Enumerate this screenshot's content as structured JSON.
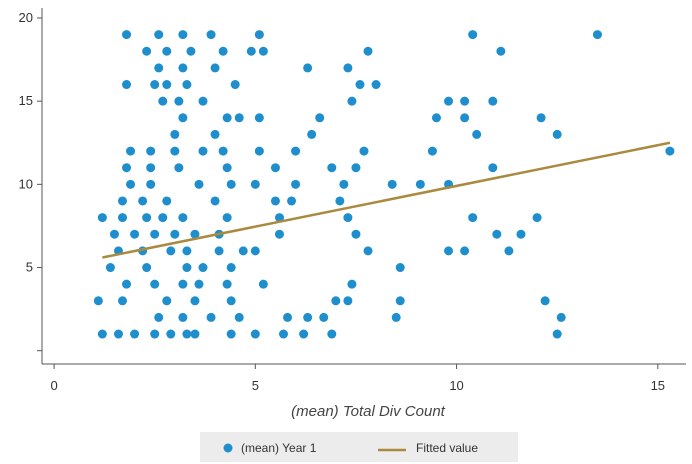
{
  "chart_data": {
    "type": "scatter",
    "xlabel": "(mean) Total Div Count",
    "ylabel": "",
    "xlim": [
      -0.3,
      15.7
    ],
    "ylim": [
      -0.8,
      20.6
    ],
    "xticks": [
      0,
      5,
      10,
      15
    ],
    "yticks": [
      5,
      10,
      15,
      20
    ],
    "y_minor_ticks": [
      0
    ],
    "grid": false,
    "legend": "bottom",
    "colors": {
      "points": "#1f8ecd",
      "fit": "#a98a3e",
      "axis": "#555555"
    },
    "series": [
      {
        "name": "(mean) Year 1",
        "kind": "scatter",
        "points": [
          [
            1.8,
            19
          ],
          [
            2.6,
            19
          ],
          [
            3.2,
            19
          ],
          [
            3.9,
            19
          ],
          [
            5.1,
            19
          ],
          [
            10.4,
            19
          ],
          [
            13.5,
            19
          ],
          [
            2.3,
            18
          ],
          [
            2.8,
            18
          ],
          [
            3.4,
            18
          ],
          [
            4.2,
            18
          ],
          [
            4.9,
            18
          ],
          [
            5.2,
            18
          ],
          [
            7.8,
            18
          ],
          [
            11.1,
            18
          ],
          [
            2.6,
            17
          ],
          [
            3.2,
            17
          ],
          [
            4.0,
            17
          ],
          [
            6.3,
            17
          ],
          [
            7.3,
            17
          ],
          [
            1.8,
            16
          ],
          [
            2.5,
            16
          ],
          [
            2.8,
            16
          ],
          [
            3.3,
            16
          ],
          [
            4.5,
            16
          ],
          [
            7.6,
            16
          ],
          [
            8.0,
            16
          ],
          [
            2.7,
            15
          ],
          [
            3.1,
            15
          ],
          [
            3.7,
            15
          ],
          [
            7.4,
            15
          ],
          [
            9.8,
            15
          ],
          [
            10.2,
            15
          ],
          [
            10.9,
            15
          ],
          [
            3.2,
            14
          ],
          [
            4.3,
            14
          ],
          [
            4.6,
            14
          ],
          [
            5.1,
            14
          ],
          [
            6.6,
            14
          ],
          [
            9.5,
            14
          ],
          [
            10.2,
            14
          ],
          [
            12.1,
            14
          ],
          [
            3.0,
            13
          ],
          [
            4.0,
            13
          ],
          [
            6.4,
            13
          ],
          [
            10.5,
            13
          ],
          [
            12.5,
            13
          ],
          [
            1.9,
            12
          ],
          [
            2.4,
            12
          ],
          [
            3.0,
            12
          ],
          [
            3.7,
            12
          ],
          [
            4.2,
            12
          ],
          [
            5.1,
            12
          ],
          [
            6.0,
            12
          ],
          [
            7.7,
            12
          ],
          [
            9.4,
            12
          ],
          [
            15.3,
            12
          ],
          [
            1.8,
            11
          ],
          [
            2.4,
            11
          ],
          [
            3.1,
            11
          ],
          [
            4.3,
            11
          ],
          [
            5.5,
            11
          ],
          [
            6.9,
            11
          ],
          [
            7.5,
            11
          ],
          [
            10.9,
            11
          ],
          [
            1.9,
            10
          ],
          [
            2.4,
            10
          ],
          [
            3.6,
            10
          ],
          [
            4.4,
            10
          ],
          [
            5.0,
            10
          ],
          [
            6.0,
            10
          ],
          [
            7.2,
            10
          ],
          [
            8.4,
            10
          ],
          [
            9.1,
            10
          ],
          [
            9.8,
            10
          ],
          [
            1.7,
            9
          ],
          [
            2.2,
            9
          ],
          [
            2.8,
            9
          ],
          [
            4.0,
            9
          ],
          [
            5.5,
            9
          ],
          [
            5.9,
            9
          ],
          [
            7.1,
            9
          ],
          [
            1.2,
            8
          ],
          [
            1.7,
            8
          ],
          [
            2.3,
            8
          ],
          [
            2.7,
            8
          ],
          [
            3.2,
            8
          ],
          [
            4.3,
            8
          ],
          [
            5.6,
            8
          ],
          [
            7.3,
            8
          ],
          [
            10.4,
            8
          ],
          [
            12.0,
            8
          ],
          [
            1.5,
            7
          ],
          [
            2.0,
            7
          ],
          [
            2.5,
            7
          ],
          [
            3.0,
            7
          ],
          [
            3.5,
            7
          ],
          [
            4.1,
            7
          ],
          [
            5.6,
            7
          ],
          [
            7.5,
            7
          ],
          [
            11.0,
            7
          ],
          [
            11.6,
            7
          ],
          [
            1.6,
            6
          ],
          [
            2.2,
            6
          ],
          [
            2.9,
            6
          ],
          [
            3.3,
            6
          ],
          [
            4.1,
            6
          ],
          [
            4.7,
            6
          ],
          [
            5.0,
            6
          ],
          [
            7.8,
            6
          ],
          [
            9.8,
            6
          ],
          [
            10.2,
            6
          ],
          [
            11.3,
            6
          ],
          [
            1.4,
            5
          ],
          [
            2.3,
            5
          ],
          [
            3.3,
            5
          ],
          [
            3.7,
            5
          ],
          [
            4.4,
            5
          ],
          [
            8.6,
            5
          ],
          [
            1.8,
            4
          ],
          [
            2.5,
            4
          ],
          [
            3.2,
            4
          ],
          [
            3.6,
            4
          ],
          [
            4.3,
            4
          ],
          [
            5.2,
            4
          ],
          [
            7.4,
            4
          ],
          [
            1.1,
            3
          ],
          [
            1.7,
            3
          ],
          [
            2.8,
            3
          ],
          [
            3.5,
            3
          ],
          [
            4.4,
            3
          ],
          [
            7.0,
            3
          ],
          [
            7.3,
            3
          ],
          [
            8.6,
            3
          ],
          [
            12.2,
            3
          ],
          [
            2.6,
            2
          ],
          [
            3.2,
            2
          ],
          [
            3.9,
            2
          ],
          [
            4.6,
            2
          ],
          [
            5.8,
            2
          ],
          [
            6.3,
            2
          ],
          [
            6.7,
            2
          ],
          [
            8.5,
            2
          ],
          [
            12.6,
            2
          ],
          [
            1.2,
            1
          ],
          [
            1.6,
            1
          ],
          [
            2.0,
            1
          ],
          [
            2.5,
            1
          ],
          [
            2.9,
            1
          ],
          [
            3.3,
            1
          ],
          [
            3.5,
            1
          ],
          [
            4.4,
            1
          ],
          [
            5.0,
            1
          ],
          [
            5.7,
            1
          ],
          [
            6.2,
            1
          ],
          [
            6.9,
            1
          ],
          [
            12.5,
            1
          ]
        ]
      },
      {
        "name": "Fitted value",
        "kind": "line",
        "points": [
          [
            1.2,
            5.6
          ],
          [
            15.3,
            12.5
          ]
        ]
      }
    ]
  }
}
